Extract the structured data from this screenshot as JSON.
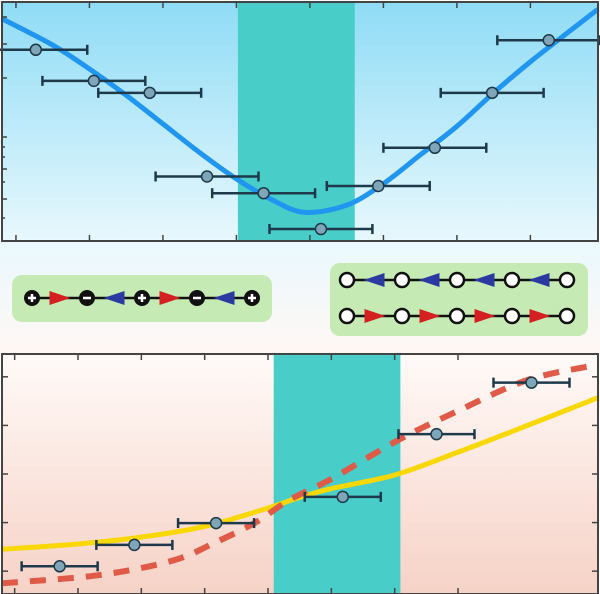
{
  "colors": {
    "top_bg_top": "#8fdcf6",
    "top_bg_bottom": "#e8f8fd",
    "bottom_bg_top": "#fffaf8",
    "bottom_bg_bottom": "#f6d2c6",
    "band": "#48cdc8",
    "blue_curve": "#2196f0",
    "yellow_curve": "#f8d800",
    "red_dashed_curve": "#e05a48",
    "marker_fill": "#7fa6b8",
    "marker_stroke": "#1e3a4a",
    "inset_bg": "#c5eab4",
    "arrow_red": "#d42020",
    "arrow_blue": "#2a3aa0"
  },
  "chart_data": [
    {
      "type": "scatter",
      "panel": "top",
      "xlim": [
        -0.19,
        7.92
      ],
      "ylim": [
        0,
        1
      ],
      "x_ticks": [
        0,
        1,
        2,
        3,
        4,
        5,
        6,
        7
      ],
      "y_scale": "log",
      "grid": false,
      "shaded_band": [
        3.02,
        4.61
      ],
      "points": [
        {
          "x": 0.27,
          "y": 0.8,
          "xerr": 0.7
        },
        {
          "x": 1.06,
          "y": 0.67,
          "xerr": 0.7
        },
        {
          "x": 1.82,
          "y": 0.62,
          "xerr": 0.7
        },
        {
          "x": 2.6,
          "y": 0.27,
          "xerr": 0.7
        },
        {
          "x": 3.37,
          "y": 0.2,
          "xerr": 0.7
        },
        {
          "x": 4.15,
          "y": 0.05,
          "xerr": 0.7
        },
        {
          "x": 4.93,
          "y": 0.23,
          "xerr": 0.7
        },
        {
          "x": 5.7,
          "y": 0.39,
          "xerr": 0.7
        },
        {
          "x": 6.48,
          "y": 0.62,
          "xerr": 0.7
        },
        {
          "x": 7.25,
          "y": 0.84,
          "xerr": 0.7
        }
      ],
      "curves": [
        {
          "style": "solid",
          "color": "blue",
          "x": [
            -0.19,
            0.5,
            1,
            1.5,
            2,
            2.5,
            3,
            3.5,
            3.93,
            4.5,
            5,
            5.5,
            6,
            6.5,
            7,
            7.5,
            7.92
          ],
          "y": [
            0.93,
            0.82,
            0.72,
            0.61,
            0.49,
            0.37,
            0.26,
            0.17,
            0.12,
            0.15,
            0.24,
            0.36,
            0.48,
            0.62,
            0.75,
            0.87,
            0.97
          ]
        }
      ]
    },
    {
      "type": "scatter",
      "panel": "bottom",
      "xlim": [
        -0.2,
        9.21
      ],
      "ylim": [
        -0.47,
        4.47
      ],
      "x_ticks": [
        0,
        1,
        2,
        3,
        4,
        5,
        6,
        7
      ],
      "y_ticks": [
        0,
        1,
        2,
        3,
        4
      ],
      "grid": false,
      "shaded_band": [
        4.09,
        6.09
      ],
      "points": [
        {
          "x": 0.71,
          "y": 0.1,
          "xerr": 0.6
        },
        {
          "x": 1.89,
          "y": 0.54,
          "xerr": 0.6
        },
        {
          "x": 3.18,
          "y": 0.99,
          "xerr": 0.6
        },
        {
          "x": 5.18,
          "y": 1.53,
          "xerr": 0.6
        },
        {
          "x": 6.66,
          "y": 2.82,
          "xerr": 0.6
        },
        {
          "x": 8.16,
          "y": 3.88,
          "xerr": 0.6
        }
      ],
      "curves": [
        {
          "style": "solid",
          "color": "yellow",
          "x": [
            -0.2,
            1,
            2,
            3,
            4,
            4.5,
            5,
            6,
            7,
            8,
            9.21
          ],
          "y": [
            0.45,
            0.56,
            0.7,
            0.92,
            1.3,
            1.52,
            1.7,
            1.98,
            2.45,
            2.95,
            3.57
          ]
        },
        {
          "style": "dashed",
          "color": "red",
          "x": [
            -0.2,
            1.34,
            2.5,
            3.15,
            3.8,
            4.33,
            5,
            6.06,
            7,
            8.11,
            9.21
          ],
          "y": [
            -0.25,
            -0.08,
            0.22,
            0.58,
            1.0,
            1.46,
            1.9,
            2.7,
            3.3,
            3.94,
            4.25
          ]
        }
      ]
    }
  ],
  "insets": {
    "left_chain": [
      "+",
      "right",
      "-",
      "left",
      "+",
      "right",
      "-",
      "left",
      "+"
    ],
    "right_chain_top": [
      "o",
      "left",
      "o",
      "left",
      "o",
      "left",
      "o",
      "left",
      "o"
    ],
    "right_chain_bottom": [
      "o",
      "right",
      "o",
      "right",
      "o",
      "right",
      "o",
      "right",
      "o"
    ]
  }
}
